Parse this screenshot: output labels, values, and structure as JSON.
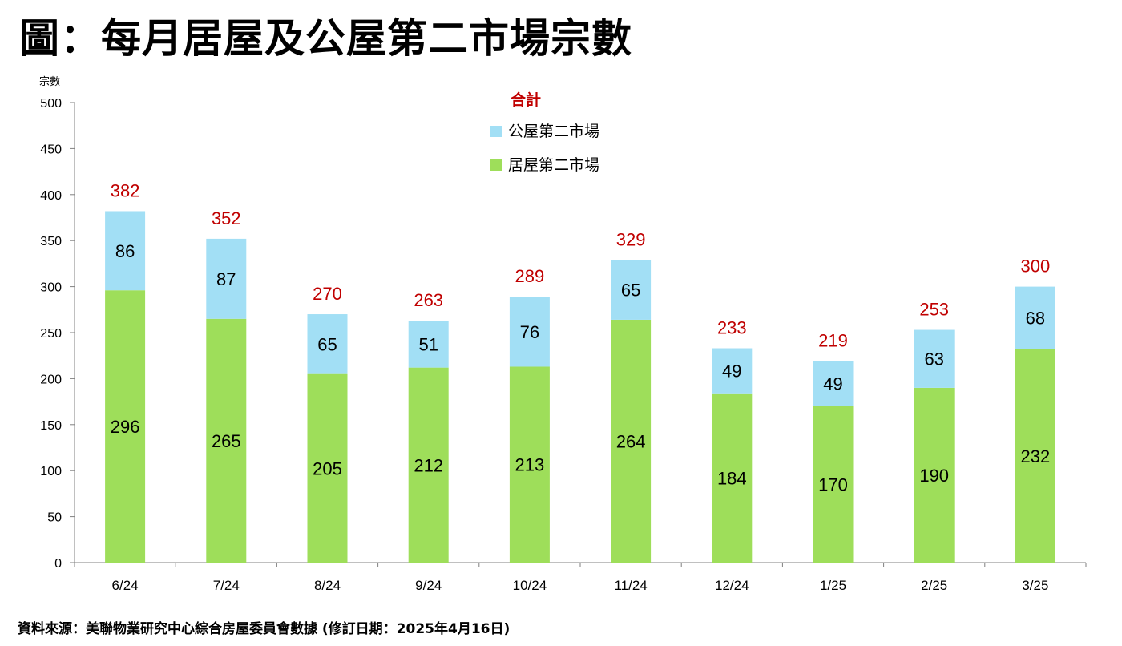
{
  "title": "圖：每月居屋及公屋第二市場宗數",
  "source": "資料來源：美聯物業研究中心綜合房屋委員會數據 (修訂日期：2025年4月16日)",
  "chart_data": {
    "type": "bar",
    "stacked": true,
    "ylabel": "宗數",
    "ylim": [
      0,
      500
    ],
    "yticks": [
      0,
      50,
      100,
      150,
      200,
      250,
      300,
      350,
      400,
      450,
      500
    ],
    "categories": [
      "6/24",
      "7/24",
      "8/24",
      "9/24",
      "10/24",
      "11/24",
      "12/24",
      "1/25",
      "2/25",
      "3/25"
    ],
    "series": [
      {
        "name": "居屋第二市場",
        "color": "#9ede5a",
        "values": [
          296,
          265,
          205,
          212,
          213,
          264,
          184,
          170,
          190,
          232
        ]
      },
      {
        "name": "公屋第二市場",
        "color": "#a2dff5",
        "values": [
          86,
          87,
          65,
          51,
          76,
          65,
          49,
          49,
          63,
          68
        ]
      }
    ],
    "totals_label": "合計",
    "totals": [
      382,
      352,
      270,
      263,
      289,
      329,
      233,
      219,
      253,
      300
    ],
    "total_color": "#c00000",
    "legend_placement": "top-center",
    "grid": false
  }
}
